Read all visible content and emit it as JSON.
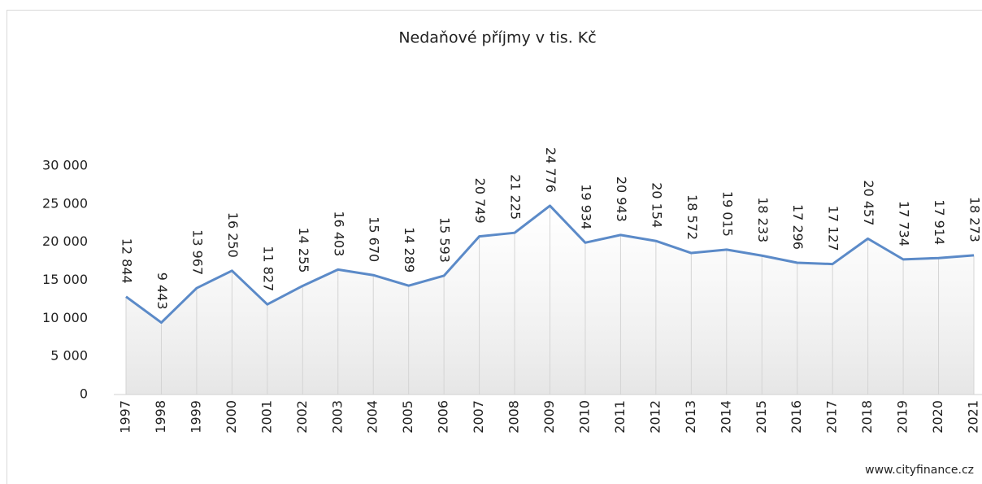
{
  "chart_data": {
    "type": "line",
    "title": "Nedaňové  příjmy v tis. Kč",
    "categories": [
      "1997",
      "1998",
      "1999",
      "2000",
      "2001",
      "2002",
      "2003",
      "2004",
      "2005",
      "2006",
      "2007",
      "2008",
      "2009",
      "2010",
      "2011",
      "2012",
      "2013",
      "2014",
      "2015",
      "2016",
      "2017",
      "2018",
      "2019",
      "2020",
      "2021"
    ],
    "series": [
      {
        "name": "Nedaňové příjmy",
        "color": "#5b8ac8",
        "values": [
          12844,
          9443,
          13967,
          16250,
          11827,
          14255,
          16403,
          15670,
          14289,
          15593,
          20749,
          21225,
          24776,
          19934,
          20943,
          20154,
          18572,
          19015,
          18233,
          17296,
          17127,
          20457,
          17734,
          17914,
          18273
        ],
        "value_labels": [
          "12 844",
          "9 443",
          "13 967",
          "16 250",
          "11 827",
          "14 255",
          "16 403",
          "15 670",
          "14 289",
          "15 593",
          "20 749",
          "21 225",
          "24 776",
          "19 934",
          "20 943",
          "20 154",
          "18 572",
          "19 015",
          "18 233",
          "17 296",
          "17 127",
          "20 457",
          "17 734",
          "17 914",
          "18 273"
        ]
      }
    ],
    "ylim": [
      0,
      30000
    ],
    "yticks": [
      0,
      {
        "value": 5000,
        "label": "5 000"
      },
      {
        "value": 10000,
        "label": "10 000"
      },
      {
        "value": 15000,
        "label": "15 000"
      },
      {
        "value": 20000,
        "label": "20 000"
      },
      {
        "value": 25000,
        "label": "25 000"
      },
      {
        "value": 30000,
        "label": "30 000"
      }
    ],
    "source": "www.cityfinance.cz"
  }
}
